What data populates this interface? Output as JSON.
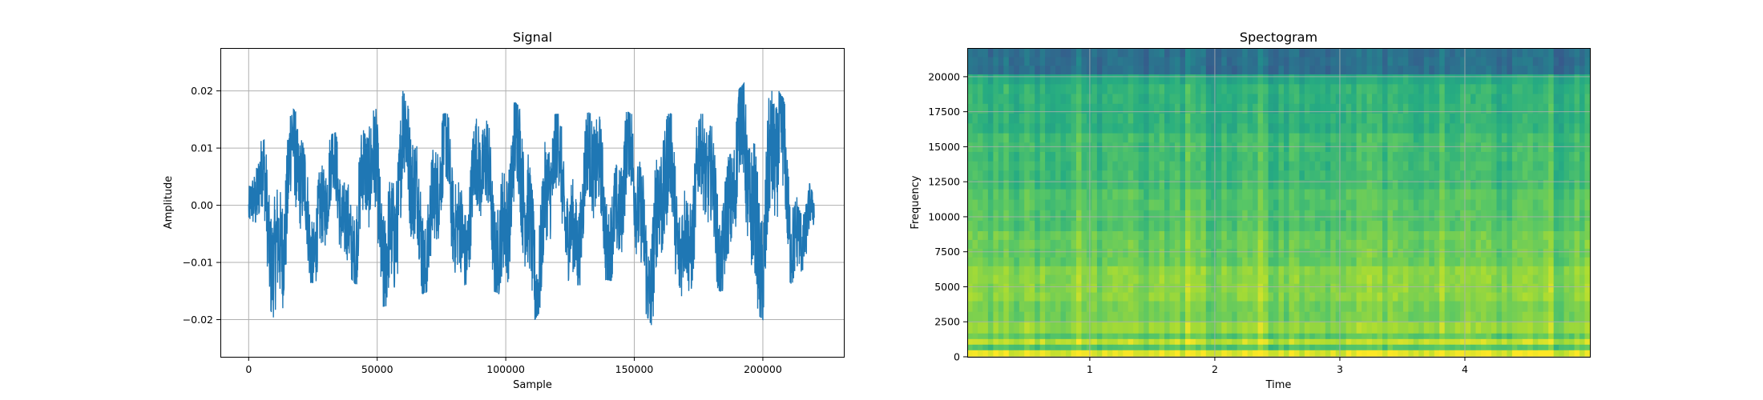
{
  "chart_data": [
    {
      "type": "line",
      "title": "Signal",
      "xlabel": "Sample",
      "ylabel": "Amplitude",
      "xlim": [
        -11000,
        231500
      ],
      "ylim": [
        -0.0265,
        0.0275
      ],
      "xticks": [
        0,
        50000,
        100000,
        150000,
        200000
      ],
      "xtick_labels": [
        "0",
        "50000",
        "100000",
        "150000",
        "200000"
      ],
      "yticks": [
        -0.02,
        -0.01,
        0.0,
        0.01,
        0.02
      ],
      "ytick_labels": [
        "−0.02",
        "−0.01",
        "0.00",
        "0.01",
        "0.02"
      ],
      "grid": true,
      "color": "#1f77b4",
      "series": [
        {
          "x": [
            0,
            10000,
            20000,
            30000,
            40000,
            50000,
            60000,
            70000,
            80000,
            90000,
            100000,
            110000,
            120000,
            130000,
            140000,
            150000,
            160000,
            170000,
            180000,
            190000,
            200000,
            210000,
            220000
          ],
          "y_max": [
            0.004,
            0.019,
            0.016,
            0.012,
            0.014,
            0.017,
            0.02,
            0.016,
            0.016,
            0.015,
            0.019,
            0.016,
            0.016,
            0.016,
            0.017,
            0.016,
            0.016,
            0.016,
            0.016,
            0.02,
            0.025,
            0.017,
            0.001
          ],
          "y_min": [
            -0.009,
            -0.02,
            -0.014,
            -0.013,
            -0.013,
            -0.018,
            -0.017,
            -0.015,
            -0.014,
            -0.014,
            -0.016,
            -0.021,
            -0.014,
            -0.014,
            -0.013,
            -0.015,
            -0.024,
            -0.015,
            -0.015,
            -0.015,
            -0.02,
            -0.014,
            -0.011
          ]
        }
      ]
    },
    {
      "type": "heatmap",
      "title": "Spectogram",
      "xlabel": "Time",
      "ylabel": "Frequency",
      "xlim": [
        0.02,
        5.0
      ],
      "ylim": [
        0,
        22050
      ],
      "xticks": [
        1,
        2,
        3,
        4
      ],
      "xtick_labels": [
        "1",
        "2",
        "3",
        "4"
      ],
      "yticks": [
        0,
        2500,
        5000,
        7500,
        10000,
        12500,
        15000,
        17500,
        20000
      ],
      "ytick_labels": [
        "0",
        "2500",
        "5000",
        "7500",
        "10000",
        "12500",
        "15000",
        "17500",
        "20000"
      ],
      "grid": true,
      "colormap": "viridis",
      "frequency_bands": [
        {
          "from": 0,
          "to": 500,
          "level": 0.95
        },
        {
          "from": 500,
          "to": 900,
          "level": 0.72
        },
        {
          "from": 900,
          "to": 1300,
          "level": 0.9
        },
        {
          "from": 1300,
          "to": 1700,
          "level": 0.74
        },
        {
          "from": 1700,
          "to": 2500,
          "level": 0.84
        },
        {
          "from": 2500,
          "to": 4000,
          "level": 0.78
        },
        {
          "from": 4000,
          "to": 6500,
          "level": 0.82
        },
        {
          "from": 6500,
          "to": 9000,
          "level": 0.76
        },
        {
          "from": 9000,
          "to": 12000,
          "level": 0.72
        },
        {
          "from": 12000,
          "to": 16000,
          "level": 0.68
        },
        {
          "from": 16000,
          "to": 19500,
          "level": 0.64
        },
        {
          "from": 19500,
          "to": 20200,
          "level": 0.6
        },
        {
          "from": 20200,
          "to": 22050,
          "level": 0.36
        }
      ]
    }
  ]
}
